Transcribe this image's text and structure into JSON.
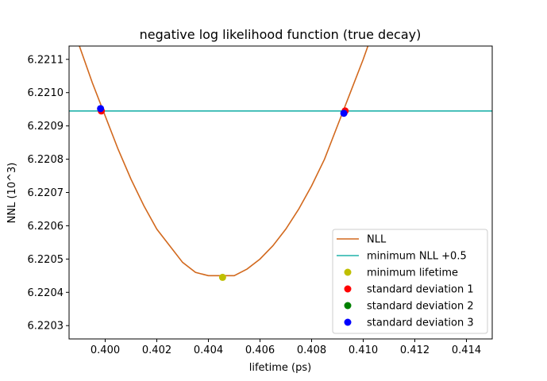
{
  "chart_data": {
    "type": "line",
    "title": "negative log likelihood function (true decay)",
    "xlabel": "lifetime (ps)",
    "ylabel": "NNL (10^3)",
    "xlim": [
      0.3986,
      0.415
    ],
    "ylim": [
      6.22026,
      6.22114
    ],
    "xticks": [
      0.4,
      0.402,
      0.404,
      0.406,
      0.408,
      0.41,
      0.412,
      0.414
    ],
    "xtick_labels": [
      "0.400",
      "0.402",
      "0.404",
      "0.406",
      "0.408",
      "0.410",
      "0.412",
      "0.414"
    ],
    "yticks": [
      6.2203,
      6.2204,
      6.2205,
      6.2206,
      6.2207,
      6.2208,
      6.2209,
      6.221,
      6.2211
    ],
    "ytick_labels": [
      "6.2203",
      "6.2204",
      "6.2205",
      "6.2206",
      "6.2207",
      "6.2208",
      "6.2209",
      "6.2210",
      "6.2211"
    ],
    "grid": false,
    "legend_position": "lower-right",
    "series": [
      {
        "name": "NLL",
        "kind": "line",
        "color": "#d2691e",
        "x": [
          0.399,
          0.3995,
          0.4,
          0.4005,
          0.401,
          0.4015,
          0.402,
          0.4025,
          0.403,
          0.4035,
          0.404,
          0.4045,
          0.405,
          0.4055,
          0.406,
          0.4065,
          0.407,
          0.4075,
          0.408,
          0.4085,
          0.409,
          0.4095,
          0.41,
          0.4105
        ],
        "y": [
          6.22114,
          6.22103,
          6.22093,
          6.22083,
          6.22074,
          6.22066,
          6.22059,
          6.22054,
          6.22049,
          6.22046,
          6.22045,
          6.22045,
          6.22045,
          6.22047,
          6.2205,
          6.22054,
          6.22059,
          6.22065,
          6.22072,
          6.2208,
          6.2209,
          6.221,
          6.2211,
          6.22121
        ]
      },
      {
        "name": "minimum NLL +0.5",
        "kind": "hline",
        "color": "#20b2aa",
        "y": 6.220945
      },
      {
        "name": "minimum lifetime",
        "kind": "point",
        "color": "#bfbf00",
        "x": [
          0.40455
        ],
        "y": [
          6.220445
        ]
      },
      {
        "name": "standard deviation 1",
        "kind": "point",
        "color": "#ff0000",
        "x": [
          0.39985,
          0.4093
        ],
        "y": [
          6.220945,
          6.220945
        ]
      },
      {
        "name": "standard deviation 2",
        "kind": "point",
        "color": "#008000",
        "x": [],
        "y": []
      },
      {
        "name": "standard deviation 3",
        "kind": "point",
        "color": "#0000ff",
        "x": [
          0.39982,
          0.40925
        ],
        "y": [
          6.220952,
          6.220938
        ]
      }
    ]
  }
}
